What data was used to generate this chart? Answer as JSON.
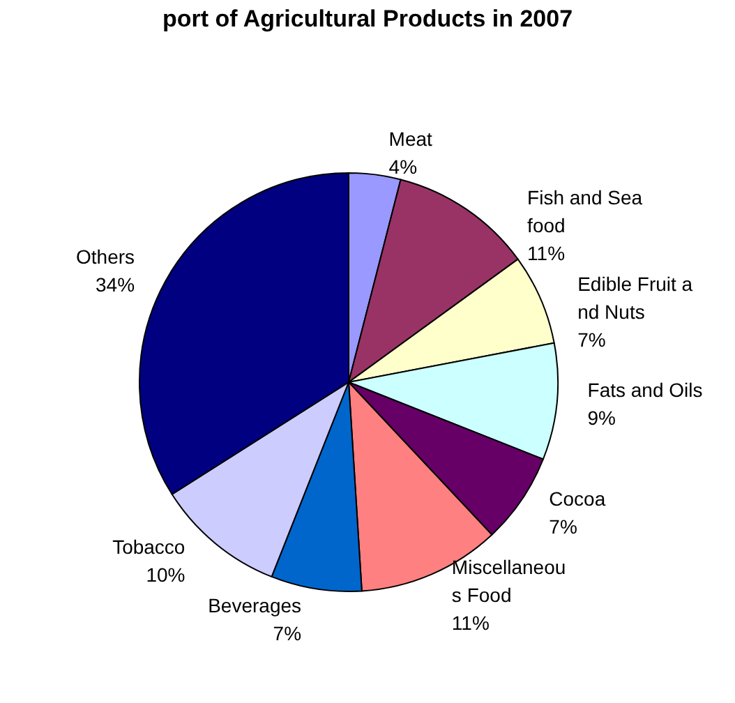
{
  "chart_data": {
    "type": "pie",
    "title": "port of Agricultural Products in 2007",
    "categories": [
      "Meat",
      "Fish and Seafood",
      "Edible Fruit and Nuts",
      "Fats and Oils",
      "Cocoa",
      "Miscellaneous Food",
      "Beverages",
      "Tobacco",
      "Others"
    ],
    "values": [
      4,
      11,
      7,
      9,
      7,
      11,
      7,
      10,
      34
    ],
    "colors": [
      "#9999ff",
      "#993366",
      "#ffffcc",
      "#ccffff",
      "#660066",
      "#ff8080",
      "#0066cc",
      "#ccccff",
      "#000080"
    ],
    "value_labels": [
      "4%",
      "11%",
      "7%",
      "9%",
      "7%",
      "11%",
      "7%",
      "10%",
      "34%"
    ],
    "legend": false
  }
}
